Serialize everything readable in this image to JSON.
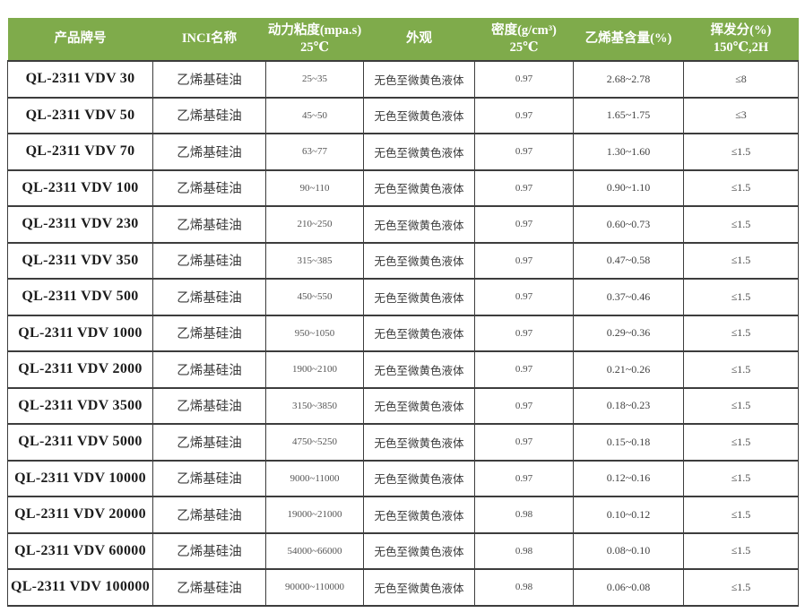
{
  "colors": {
    "header_bg": "#7fab4b",
    "header_text": "#ffffff",
    "border": "#3d3d3d"
  },
  "table": {
    "headers": [
      "产品牌号",
      "INCI名称",
      "动力粘度(mpa.s)\n25℃",
      "外观",
      "密度(g/cm³)\n25℃",
      "乙烯基含量(%)",
      "挥发分(%)\n150℃,2H"
    ],
    "rows": [
      [
        "QL-2311 VDV 30",
        "乙烯基硅油",
        "25~35",
        "无色至微黄色液体",
        "0.97",
        "2.68~2.78",
        "≤8"
      ],
      [
        "QL-2311 VDV 50",
        "乙烯基硅油",
        "45~50",
        "无色至微黄色液体",
        "0.97",
        "1.65~1.75",
        "≤3"
      ],
      [
        "QL-2311 VDV 70",
        "乙烯基硅油",
        "63~77",
        "无色至微黄色液体",
        "0.97",
        "1.30~1.60",
        "≤1.5"
      ],
      [
        "QL-2311 VDV 100",
        "乙烯基硅油",
        "90~110",
        "无色至微黄色液体",
        "0.97",
        "0.90~1.10",
        "≤1.5"
      ],
      [
        "QL-2311 VDV 230",
        "乙烯基硅油",
        "210~250",
        "无色至微黄色液体",
        "0.97",
        "0.60~0.73",
        "≤1.5"
      ],
      [
        "QL-2311 VDV 350",
        "乙烯基硅油",
        "315~385",
        "无色至微黄色液体",
        "0.97",
        "0.47~0.58",
        "≤1.5"
      ],
      [
        "QL-2311 VDV 500",
        "乙烯基硅油",
        "450~550",
        "无色至微黄色液体",
        "0.97",
        "0.37~0.46",
        "≤1.5"
      ],
      [
        "QL-2311 VDV 1000",
        "乙烯基硅油",
        "950~1050",
        "无色至微黄色液体",
        "0.97",
        "0.29~0.36",
        "≤1.5"
      ],
      [
        "QL-2311 VDV 2000",
        "乙烯基硅油",
        "1900~2100",
        "无色至微黄色液体",
        "0.97",
        "0.21~0.26",
        "≤1.5"
      ],
      [
        "QL-2311 VDV 3500",
        "乙烯基硅油",
        "3150~3850",
        "无色至微黄色液体",
        "0.97",
        "0.18~0.23",
        "≤1.5"
      ],
      [
        "QL-2311 VDV 5000",
        "乙烯基硅油",
        "4750~5250",
        "无色至微黄色液体",
        "0.97",
        "0.15~0.18",
        "≤1.5"
      ],
      [
        "QL-2311 VDV 10000",
        "乙烯基硅油",
        "9000~11000",
        "无色至微黄色液体",
        "0.97",
        "0.12~0.16",
        "≤1.5"
      ],
      [
        "QL-2311 VDV 20000",
        "乙烯基硅油",
        "19000~21000",
        "无色至微黄色液体",
        "0.98",
        "0.10~0.12",
        "≤1.5"
      ],
      [
        "QL-2311 VDV 60000",
        "乙烯基硅油",
        "54000~66000",
        "无色至微黄色液体",
        "0.98",
        "0.08~0.10",
        "≤1.5"
      ],
      [
        "QL-2311 VDV 100000",
        "乙烯基硅油",
        "90000~110000",
        "无色至微黄色液体",
        "0.98",
        "0.06~0.08",
        "≤1.5"
      ]
    ]
  }
}
